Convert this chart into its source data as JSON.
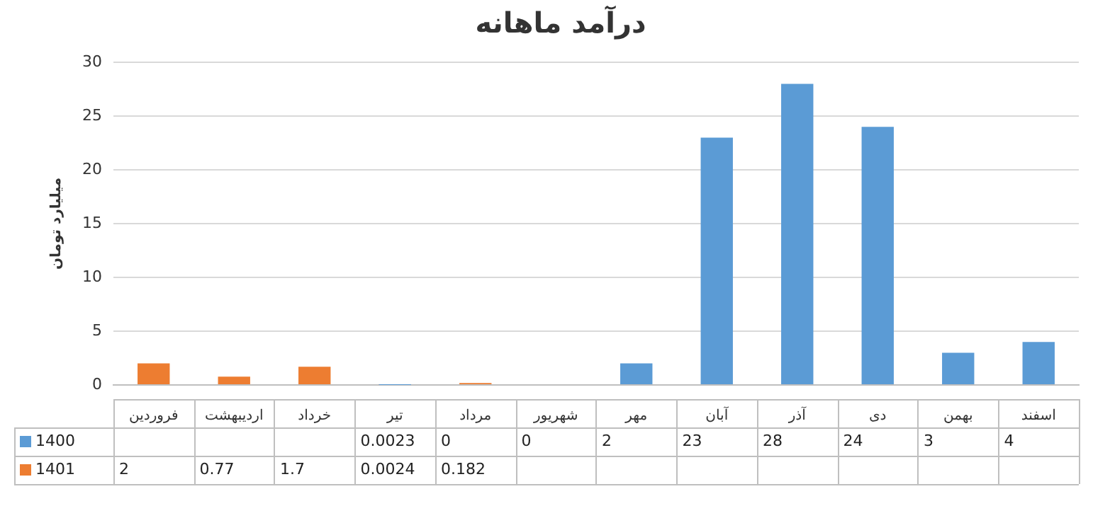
{
  "chart_data": {
    "type": "bar",
    "title": "درآمد ماهانه",
    "ylabel": "میلیارد تومان",
    "categories": [
      "فروردین",
      "اردیبهشت",
      "خرداد",
      "تیر",
      "مرداد",
      "شهریور",
      "مهر",
      "آبان",
      "آذر",
      "دی",
      "بهمن",
      "اسفند"
    ],
    "series": [
      {
        "name": "1400",
        "color": "#5b9bd5",
        "values": [
          null,
          null,
          null,
          0.0023,
          0,
          0,
          2,
          23,
          28,
          24,
          3,
          4
        ]
      },
      {
        "name": "1401",
        "color": "#ed7d31",
        "values": [
          2,
          0.77,
          1.7,
          0.0024,
          0.182,
          null,
          null,
          null,
          null,
          null,
          null,
          null
        ]
      }
    ],
    "ylim": [
      0,
      30
    ],
    "yticks": [
      0,
      5,
      10,
      15,
      20,
      25,
      30
    ],
    "grid": "y",
    "legend": "bottom",
    "data_labels": true
  }
}
